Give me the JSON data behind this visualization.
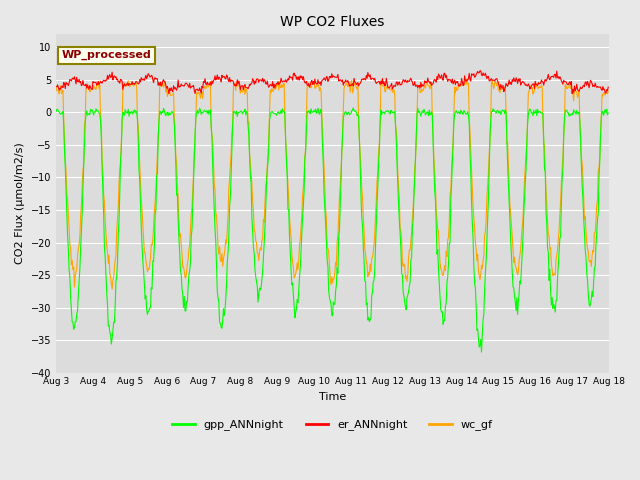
{
  "title": "WP CO2 Fluxes",
  "ylabel": "CO2 Flux (μmol/m2/s)",
  "xlabel": "Time",
  "ylim": [
    -40,
    12
  ],
  "yticks": [
    -40,
    -35,
    -30,
    -25,
    -20,
    -15,
    -10,
    -5,
    0,
    5,
    10
  ],
  "num_days": 15,
  "points_per_day": 48,
  "gpp_color": "#00FF00",
  "er_color": "#FF0000",
  "wc_color": "#FFA500",
  "fig_bg_color": "#E8E8E8",
  "plot_bg_color": "#DCDCDC",
  "legend_label": "WP_processed",
  "legend_text_color": "#8B0000",
  "legend_bg": "#FFFFF0",
  "legend_border": "#8B8000",
  "line_width": 0.8,
  "tick_labels": [
    "Aug 3",
    "Aug 4",
    "Aug 5",
    "Aug 6",
    "Aug 7",
    "Aug 8",
    "Aug 9",
    "Aug 10",
    "Aug 11",
    "Aug 12",
    "Aug 13",
    "Aug 14",
    "Aug 15",
    "Aug 16",
    "Aug 17",
    "Aug 18"
  ],
  "day_amps_gpp": [
    33,
    35,
    31,
    30,
    33,
    28,
    30,
    31,
    32,
    30,
    32,
    36,
    30,
    30,
    29
  ],
  "day_amps_wc": [
    25,
    26,
    24,
    25,
    23,
    22,
    25,
    26,
    25,
    25,
    25,
    25,
    24,
    25,
    23
  ],
  "day_er_base": [
    4.0,
    4.5,
    4.5,
    3.5,
    4.5,
    4.0,
    4.5,
    4.5,
    4.5,
    4.0,
    4.5,
    5.0,
    4.0,
    4.5,
    3.5
  ]
}
